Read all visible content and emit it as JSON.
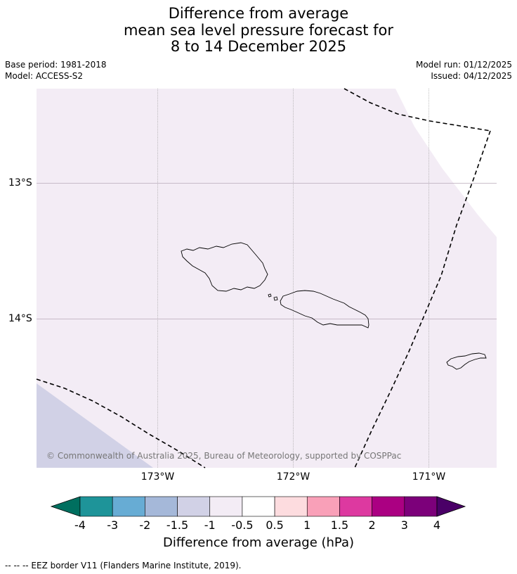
{
  "title": {
    "line1": "Difference from average",
    "line2": "mean sea level pressure forecast for",
    "line3": "8 to 14 December 2025"
  },
  "meta": {
    "base_period": "Base period: 1981-2018",
    "model": "Model: ACCESS-S2",
    "model_run": "Model run: 01/12/2025",
    "issued": "Issued: 04/12/2025"
  },
  "map": {
    "lat_labels": [
      "13°S",
      "14°S"
    ],
    "lon_labels": [
      "173°W",
      "172°W",
      "171°W"
    ],
    "copyright": "© Commonwealth of Australia 2025, Bureau of Meteorology, supported by COSPPac",
    "colors": {
      "background": "#f3ecf5",
      "low_region": "#d1d1e6",
      "land_outline": "#000000",
      "eez_line": "#000000"
    }
  },
  "colorbar": {
    "tick_labels": [
      "-4",
      "-3",
      "-2",
      "-1.5",
      "-1",
      "-0.5",
      "0.5",
      "1",
      "1.5",
      "2",
      "3",
      "4"
    ],
    "colors": [
      "#006f5f",
      "#1e9499",
      "#67acd4",
      "#a5b8d9",
      "#d1d1e6",
      "#f3ecf5",
      "#ffffff",
      "#fddcdf",
      "#f9a0b8",
      "#dd39a0",
      "#ab0082",
      "#7c007a",
      "#4a0067"
    ],
    "label": "Difference from average (hPa)"
  },
  "footer": "-- -- -- EEZ border V11 (Flanders Marine Institute, 2019)."
}
